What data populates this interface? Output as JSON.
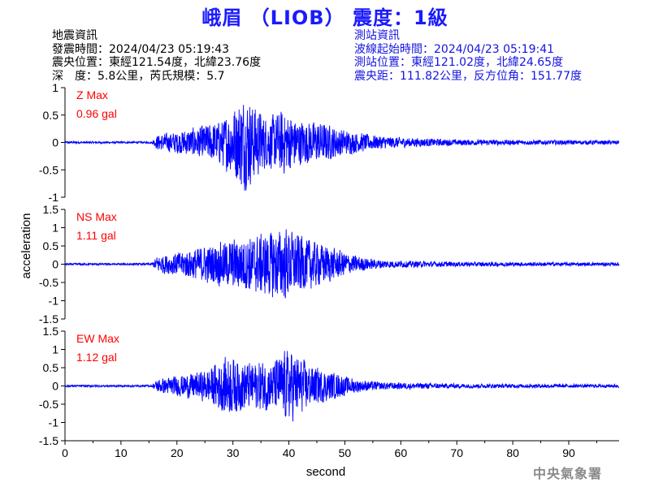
{
  "title": "峨眉 （LIOB） 震度：1級",
  "earthquake_info": {
    "heading": "地震資訊",
    "time": "發震時間：2024/04/23 05:19:43",
    "epicenter": "震央位置：東經121.54度，北緯23.76度",
    "depth_magnitude": "深　度：5.8公里，芮氏規模：5.7"
  },
  "station_info": {
    "heading": "測站資訊",
    "wave_start": "波線起始時間：2024/04/23 05:19:41",
    "location": "測站位置：東經121.02度，北緯24.65度",
    "distance": "震央距：111.82公里，反方位角：151.77度"
  },
  "agency": "中央氣象署",
  "colors": {
    "title": "#1a1aff",
    "station_text": "#1414e0",
    "trace": "#0000ff",
    "annotation": "#ff0000",
    "agency": "#8a8a8a"
  },
  "chart_data": [
    {
      "type": "line",
      "annotation": [
        "Z Max",
        "0.96 gal"
      ],
      "ylim": [
        -1,
        1
      ],
      "yticks": [
        -1,
        -0.5,
        0,
        0.5,
        1
      ],
      "ytick_labels": [
        "-1",
        "-0.5",
        "0",
        "0.5",
        "1"
      ],
      "xlim": [
        0,
        99
      ],
      "peak_abs": 0.96,
      "envelope": [
        [
          0,
          0.02
        ],
        [
          15.5,
          0.02
        ],
        [
          16.5,
          0.15
        ],
        [
          20,
          0.22
        ],
        [
          24,
          0.32
        ],
        [
          28,
          0.45
        ],
        [
          32,
          0.96
        ],
        [
          36,
          0.5
        ],
        [
          39,
          0.65
        ],
        [
          42,
          0.45
        ],
        [
          46,
          0.4
        ],
        [
          50,
          0.25
        ],
        [
          55,
          0.15
        ],
        [
          60,
          0.1
        ],
        [
          70,
          0.06
        ],
        [
          80,
          0.05
        ],
        [
          99,
          0.04
        ]
      ]
    },
    {
      "type": "line",
      "annotation": [
        "NS Max",
        "1.11 gal"
      ],
      "ylim": [
        -1.5,
        1.5
      ],
      "yticks": [
        -1.5,
        -1,
        -0.5,
        0,
        0.5,
        1,
        1.5
      ],
      "ytick_labels": [
        "-1.5",
        "-1",
        "-0.5",
        "0",
        "0.5",
        "1",
        "1.5"
      ],
      "xlim": [
        0,
        99
      ],
      "peak_abs": 1.11,
      "envelope": [
        [
          0,
          0.03
        ],
        [
          15.5,
          0.03
        ],
        [
          16.5,
          0.25
        ],
        [
          20,
          0.35
        ],
        [
          25,
          0.55
        ],
        [
          30,
          0.75
        ],
        [
          35,
          0.9
        ],
        [
          39,
          1.11
        ],
        [
          43,
          0.8
        ],
        [
          47,
          0.55
        ],
        [
          51,
          0.3
        ],
        [
          55,
          0.15
        ],
        [
          60,
          0.1
        ],
        [
          70,
          0.07
        ],
        [
          80,
          0.06
        ],
        [
          99,
          0.05
        ]
      ]
    },
    {
      "type": "line",
      "annotation": [
        "EW Max",
        "1.12 gal"
      ],
      "ylim": [
        -1.5,
        1.5
      ],
      "yticks": [
        -1.5,
        -1,
        -0.5,
        0,
        0.5,
        1,
        1.5
      ],
      "ytick_labels": [
        "-1.5",
        "-1",
        "-0.5",
        "0",
        "0.5",
        "1",
        "1.5"
      ],
      "xlim": [
        0,
        99
      ],
      "peak_abs": 1.12,
      "envelope": [
        [
          0,
          0.03
        ],
        [
          15.5,
          0.03
        ],
        [
          16.5,
          0.2
        ],
        [
          20,
          0.3
        ],
        [
          25,
          0.45
        ],
        [
          29,
          0.9
        ],
        [
          33,
          0.7
        ],
        [
          37,
          0.75
        ],
        [
          40,
          1.12
        ],
        [
          44,
          0.6
        ],
        [
          48,
          0.4
        ],
        [
          52,
          0.2
        ],
        [
          56,
          0.12
        ],
        [
          60,
          0.1
        ],
        [
          70,
          0.07
        ],
        [
          80,
          0.06
        ],
        [
          99,
          0.05
        ]
      ]
    }
  ],
  "shared_axes": {
    "xlabel": "second",
    "ylabel": "acceleration",
    "xticks": [
      0,
      10,
      20,
      30,
      40,
      50,
      60,
      70,
      80,
      90
    ],
    "xtick_labels": [
      "0",
      "10",
      "20",
      "30",
      "40",
      "50",
      "60",
      "70",
      "80",
      "90"
    ]
  }
}
